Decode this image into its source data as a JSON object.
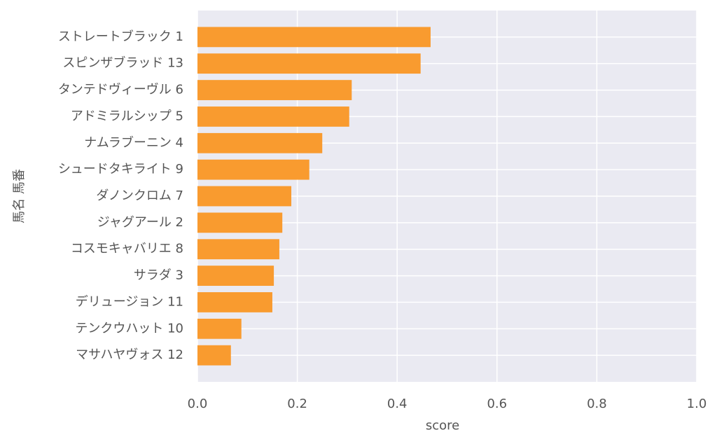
{
  "chart_data": {
    "type": "barh",
    "categories": [
      "ストレートブラック 1",
      "スピンザブラッド 13",
      "タンテドヴィーヴル 6",
      "アドミラルシップ 5",
      "ナムラブーニン 4",
      "シュードタキライト 9",
      "ダノンクロム 7",
      "ジャグアール 2",
      "コスモキャバリエ 8",
      "サラダ 3",
      "デリュージョン 11",
      "テンクウハット 10",
      "マサハヤヴォス 12"
    ],
    "values": [
      0.467,
      0.447,
      0.309,
      0.304,
      0.25,
      0.224,
      0.188,
      0.17,
      0.164,
      0.153,
      0.15,
      0.088,
      0.067
    ],
    "color": "#f99b2f",
    "x_label": "score",
    "y_label": "馬名 馬番",
    "xlim": [
      0,
      1
    ],
    "xticks": [
      {
        "value": 0,
        "label": "0.0"
      },
      {
        "value": 0.2,
        "label": "0.2"
      },
      {
        "value": 0.4,
        "label": "0.4"
      },
      {
        "value": 0.6,
        "label": "0.6"
      },
      {
        "value": 0.8,
        "label": "0.8"
      },
      {
        "value": 1,
        "label": "1.0"
      }
    ],
    "grid": true
  }
}
